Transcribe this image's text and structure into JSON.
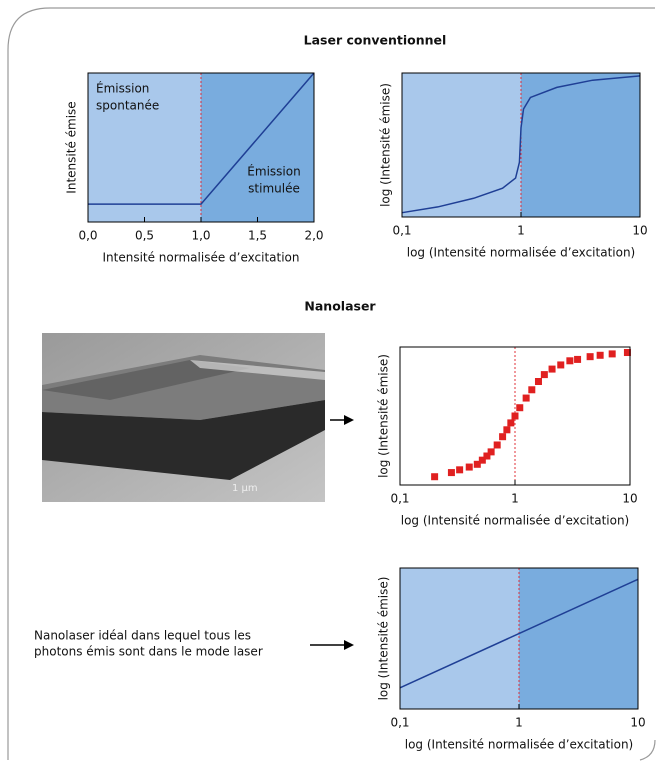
{
  "sections": [
    "Laser conventionnel",
    "Nanolaser"
  ],
  "annotation": [
    "Nanolaser idéal dans lequel tous les",
    "photons émis sont dans le mode laser"
  ],
  "image": {
    "scale_label": "1 µm"
  },
  "chart_data": [
    {
      "type": "line",
      "xlabel": "Intensité normalisée d’excitation",
      "ylabel": "Intensité émise",
      "x": [
        0,
        1,
        2
      ],
      "values": [
        0.12,
        0.12,
        1
      ],
      "color": "#1f3f95",
      "xlim": [
        0,
        2
      ],
      "ylim": [
        0,
        1
      ],
      "xticks": [
        {
          "value": 0,
          "label": "0,0"
        },
        {
          "value": 0.5,
          "label": "0,5"
        },
        {
          "value": 1,
          "label": "1,0"
        },
        {
          "value": 1.5,
          "label": "1,5"
        },
        {
          "value": 2,
          "label": "2,0"
        }
      ],
      "threshold": 1,
      "threshold_color": "#e0303a",
      "background_colors": [
        "#a9c8eb",
        "#79acde"
      ],
      "annotations": [
        [
          "Émission",
          "spontanée"
        ],
        [
          "Émission",
          "stimulée"
        ]
      ]
    },
    {
      "type": "line",
      "xlabel": "log (Intensité normalisée d’excitation)",
      "ylabel": "log (Intensité émise)",
      "x": [
        0.1,
        0.2,
        0.4,
        0.7,
        0.9,
        0.97,
        1,
        1.05,
        1.2,
        2,
        4,
        10
      ],
      "values": [
        0.03,
        0.07,
        0.13,
        0.2,
        0.27,
        0.38,
        0.62,
        0.75,
        0.83,
        0.9,
        0.95,
        0.98
      ],
      "color": "#1f3f95",
      "xlog": true,
      "xlim": [
        0.1,
        10
      ],
      "ylim": [
        0,
        1
      ],
      "xticks": [
        {
          "value": 0.1,
          "label": "0,1"
        },
        1,
        10
      ],
      "threshold": 1,
      "threshold_color": "#e0303a",
      "background_colors": [
        "#a9c8eb",
        "#79acde"
      ]
    },
    {
      "type": "scatter",
      "xlabel": "log (Intensité normalisée d’excitation)",
      "ylabel": "log (Intensité émise)",
      "x": [
        0.2,
        0.28,
        0.33,
        0.4,
        0.47,
        0.52,
        0.57,
        0.62,
        0.7,
        0.78,
        0.85,
        0.92,
        1.0,
        1.1,
        1.25,
        1.4,
        1.6,
        1.8,
        2.1,
        2.5,
        3,
        3.5,
        4.5,
        5.5,
        7,
        9.5
      ],
      "values": [
        0.06,
        0.09,
        0.11,
        0.13,
        0.15,
        0.18,
        0.21,
        0.24,
        0.29,
        0.35,
        0.4,
        0.45,
        0.5,
        0.56,
        0.63,
        0.69,
        0.75,
        0.8,
        0.84,
        0.87,
        0.9,
        0.91,
        0.93,
        0.94,
        0.95,
        0.96
      ],
      "color": "#e02020",
      "xlog": true,
      "xlim": [
        0.1,
        10
      ],
      "ylim": [
        0,
        1
      ],
      "xticks": [
        {
          "value": 0.1,
          "label": "0,1"
        },
        1,
        10
      ],
      "threshold": 1,
      "threshold_color": "#e0303a"
    },
    {
      "type": "line",
      "xlabel": "log (Intensité normalisée d’excitation)",
      "ylabel": "log (Intensité émise)",
      "x": [
        0.1,
        10
      ],
      "values": [
        0.15,
        0.92
      ],
      "color": "#1f3f95",
      "xlog": true,
      "xlim": [
        0.1,
        10
      ],
      "ylim": [
        0,
        1
      ],
      "xticks": [
        {
          "value": 0.1,
          "label": "0,1"
        },
        1,
        10
      ],
      "threshold": 1,
      "threshold_color": "#e0303a",
      "background_colors": [
        "#a9c8eb",
        "#79acde"
      ]
    }
  ]
}
